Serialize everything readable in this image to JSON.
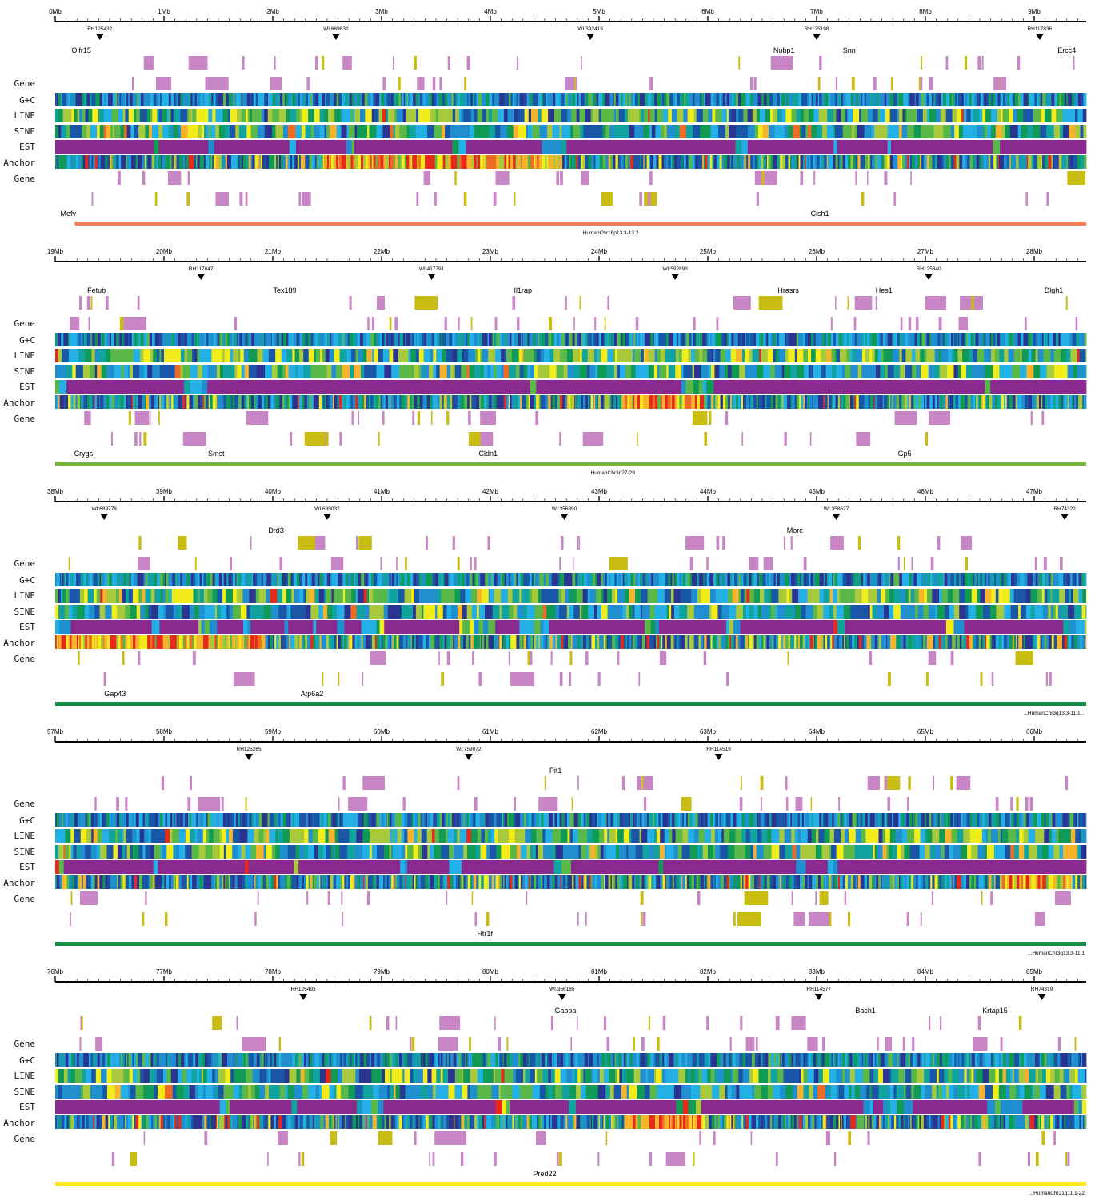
{
  "track_labels": [
    "Gene",
    "G+C",
    "LINE",
    "SINE",
    "EST",
    "Anchor",
    "Gene"
  ],
  "colors": {
    "axis": "#000000",
    "gene_pink": "#c986c6",
    "gene_olive": "#c9bd13",
    "gene_orange": "#f47b5c",
    "heat_scale": [
      "#2a3491",
      "#1a56a8",
      "#1f8fd0",
      "#22b0e6",
      "#11a3a0",
      "#0f9a55",
      "#5ab848",
      "#a8c93c",
      "#f2ec1b",
      "#f7b32b",
      "#ef6c24",
      "#e52a1c",
      "#8b2a8e"
    ]
  },
  "panels": [
    {
      "start_mb": 0,
      "tick_labels": [
        "0Mb",
        "1Mb",
        "2Mb",
        "3Mb",
        "4Mb",
        "5Mb",
        "6Mb",
        "7Mb",
        "8Mb",
        "9Mb"
      ],
      "markers": [
        {
          "label": "RH125432",
          "mb": 0.41
        },
        {
          "label": "WI:669632",
          "mb": 2.58
        },
        {
          "label": "WI:392419",
          "mb": 4.92
        },
        {
          "label": "RH125198",
          "mb": 7.0
        },
        {
          "label": "RH117836",
          "mb": 9.05
        }
      ],
      "top_genes": [
        {
          "label": "Olfr15",
          "mb": 0.24
        },
        {
          "label": "Nubp1",
          "mb": 6.7
        },
        {
          "label": "Snn",
          "mb": 7.3
        },
        {
          "label": "Ercc4",
          "mb": 9.3
        }
      ],
      "bottom_genes": [
        {
          "label": "Mefv",
          "mb": 0.12
        },
        {
          "label": "Cish1",
          "mb": 7.03
        }
      ],
      "synteny": {
        "label": "HumanChr16p13.3-13.2",
        "color": "#f47b5c",
        "from_mb": 0.18,
        "to_mb": 9.5
      }
    },
    {
      "start_mb": 19,
      "tick_labels": [
        "19Mb",
        "20Mb",
        "21Mb",
        "22Mb",
        "23Mb",
        "24Mb",
        "25Mb",
        "26Mb",
        "27Mb",
        "28Mb"
      ],
      "markers": [
        {
          "label": "RH117847",
          "mb": 20.34
        },
        {
          "label": "WI:417791",
          "mb": 22.46
        },
        {
          "label": "WI:592893",
          "mb": 24.7
        },
        {
          "label": "RH125840",
          "mb": 27.03
        }
      ],
      "top_genes": [
        {
          "label": "Fetub",
          "mb": 19.38
        },
        {
          "label": "Tex189",
          "mb": 21.11
        },
        {
          "label": "Il1rap",
          "mb": 23.3
        },
        {
          "label": "Hrasrs",
          "mb": 25.74
        },
        {
          "label": "Hes1",
          "mb": 26.62
        },
        {
          "label": "Dlgh1",
          "mb": 28.18
        }
      ],
      "bottom_genes": [
        {
          "label": "Crygs",
          "mb": 19.26
        },
        {
          "label": "Smst",
          "mb": 20.48
        },
        {
          "label": "Cldn1",
          "mb": 22.98
        },
        {
          "label": "Gp5",
          "mb": 26.81
        }
      ],
      "synteny": {
        "label": "...HumanChr3q27-29",
        "color": "#79b442",
        "from_mb": 19.0,
        "to_mb": 28.5
      }
    },
    {
      "start_mb": 38,
      "tick_labels": [
        "38Mb",
        "39Mb",
        "40Mb",
        "41Mb",
        "42Mb",
        "43Mb",
        "44Mb",
        "45Mb",
        "46Mb",
        "47Mb"
      ],
      "markers": [
        {
          "label": "WI:689778",
          "mb": 38.45
        },
        {
          "label": "WI:689032",
          "mb": 40.5
        },
        {
          "label": "WI:356890",
          "mb": 42.68
        },
        {
          "label": "WI:358627",
          "mb": 45.18
        },
        {
          "label": "RH74322",
          "mb": 47.28
        }
      ],
      "top_genes": [
        {
          "label": "Drd3",
          "mb": 40.03
        },
        {
          "label": "Morc",
          "mb": 44.8
        }
      ],
      "bottom_genes": [
        {
          "label": "Gap43",
          "mb": 38.55
        },
        {
          "label": "Atp6a2",
          "mb": 40.36
        }
      ],
      "synteny": {
        "label": "...HumanChr3q13.3-11.1...",
        "color": "#138a43",
        "from_mb": 38.0,
        "to_mb": 47.5
      }
    },
    {
      "start_mb": 57,
      "tick_labels": [
        "57Mb",
        "58Mb",
        "59Mb",
        "60Mb",
        "61Mb",
        "62Mb",
        "63Mb",
        "64Mb",
        "65Mb",
        "66Mb"
      ],
      "markers": [
        {
          "label": "RH125265",
          "mb": 58.78
        },
        {
          "label": "WI:759072",
          "mb": 60.8
        },
        {
          "label": "RH114519",
          "mb": 63.1
        }
      ],
      "top_genes": [
        {
          "label": "Pit1",
          "mb": 61.6
        }
      ],
      "bottom_genes": [
        {
          "label": "Htr1f",
          "mb": 60.95
        }
      ],
      "synteny": {
        "label": "...HumanChr3q13.3-11.1",
        "color": "#138a43",
        "from_mb": 57.0,
        "to_mb": 66.5
      }
    },
    {
      "start_mb": 76,
      "tick_labels": [
        "76Mb",
        "77Mb",
        "78Mb",
        "79Mb",
        "80Mb",
        "81Mb",
        "82Mb",
        "83Mb",
        "84Mb",
        "85Mb"
      ],
      "markers": [
        {
          "label": "RH125493",
          "mb": 78.28
        },
        {
          "label": "WI:356185",
          "mb": 80.66
        },
        {
          "label": "RH114577",
          "mb": 83.02
        },
        {
          "label": "RH74319",
          "mb": 85.07
        }
      ],
      "top_genes": [
        {
          "label": "Gabpa",
          "mb": 80.69
        },
        {
          "label": "Bach1",
          "mb": 83.45
        },
        {
          "label": "Krtap15",
          "mb": 84.64
        }
      ],
      "bottom_genes": [
        {
          "label": "Pred22",
          "mb": 80.5
        }
      ],
      "synteny": {
        "label": "...HumanChr21q11.1-22",
        "color": "#fde51a",
        "from_mb": 76.0,
        "to_mb": 85.5
      }
    }
  ]
}
